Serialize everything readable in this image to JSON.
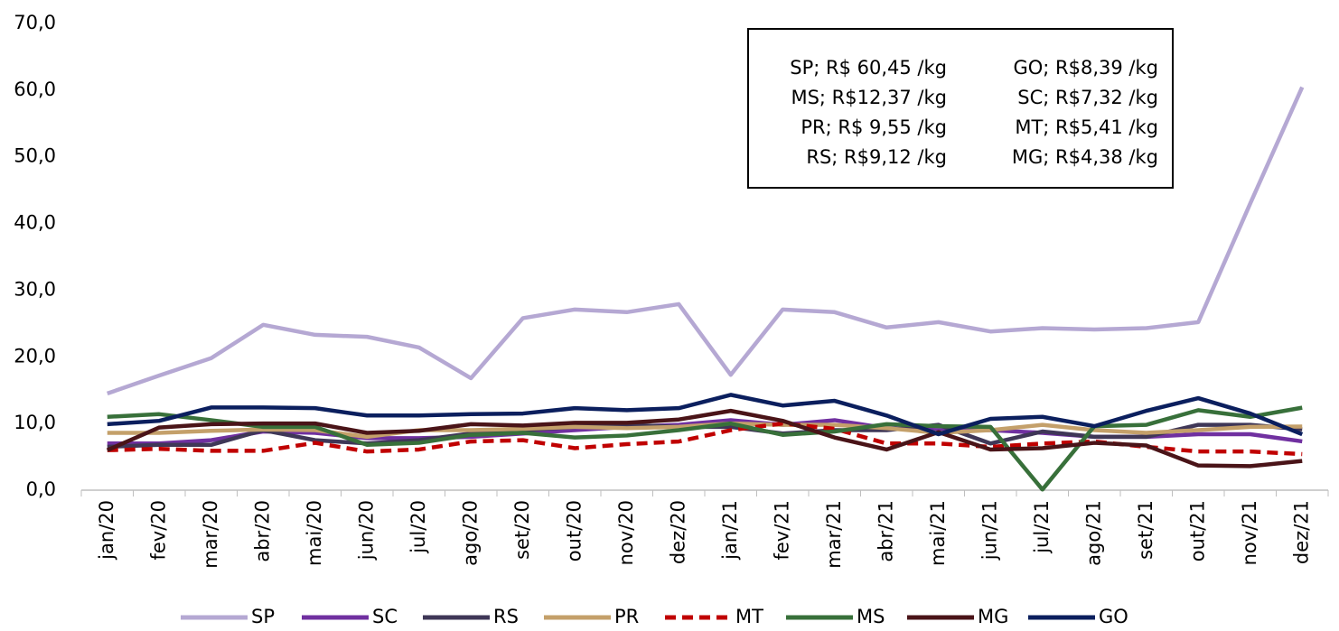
{
  "chart_data": {
    "type": "line",
    "categories": [
      "jan/20",
      "fev/20",
      "mar/20",
      "abr/20",
      "mai/20",
      "jun/20",
      "jul/20",
      "ago/20",
      "set/20",
      "out/20",
      "nov/20",
      "dez/20",
      "jan/21",
      "fev/21",
      "mar/21",
      "abr/21",
      "mai/21",
      "jun/21",
      "jul/21",
      "ago/21",
      "set/21",
      "out/21",
      "nov/21",
      "dez/21"
    ],
    "ylim": [
      0,
      70
    ],
    "yticks": [
      {
        "value": 0,
        "label": "0,0"
      },
      {
        "value": 10,
        "label": "10,0"
      },
      {
        "value": 20,
        "label": "20,0"
      },
      {
        "value": 30,
        "label": "30,0"
      },
      {
        "value": 40,
        "label": "40,0"
      },
      {
        "value": 50,
        "label": "50,0"
      },
      {
        "value": 60,
        "label": "60,0"
      },
      {
        "value": 70,
        "label": "70,0"
      }
    ],
    "grid": false,
    "legend": "bottom",
    "annotations": [
      "SP; R$ 60,45 /kg",
      "MS; R$12,37 /kg",
      "PR; R$ 9,55 /kg",
      "RS; R$9,12 /kg",
      "GO; R$8,39 /kg",
      "SC; R$7,32 /kg",
      "MT; R$5,41 /kg",
      "MG; R$4,38 /kg"
    ],
    "series": [
      {
        "name": "SP",
        "color": "#b5a8d3",
        "values": [
          14.5,
          17.2,
          19.8,
          24.8,
          23.3,
          23.0,
          21.4,
          16.8,
          25.8,
          27.1,
          26.7,
          27.9,
          17.3,
          27.1,
          26.7,
          24.4,
          25.2,
          23.8,
          24.3,
          24.1,
          24.3,
          25.2,
          43.0,
          60.45
        ]
      },
      {
        "name": "SC",
        "color": "#7030a0",
        "values": [
          7.0,
          7.0,
          7.5,
          8.8,
          8.6,
          7.8,
          7.8,
          8.0,
          8.5,
          9.0,
          9.5,
          9.8,
          10.5,
          9.8,
          10.5,
          9.3,
          9.0,
          9.0,
          8.6,
          8.0,
          8.0,
          8.4,
          8.4,
          7.32
        ]
      },
      {
        "name": "RS",
        "color": "#3f3757",
        "values": [
          6.5,
          6.8,
          6.8,
          9.0,
          7.5,
          7.0,
          7.5,
          8.5,
          9.0,
          9.5,
          9.8,
          9.5,
          9.5,
          8.5,
          9.0,
          9.0,
          9.8,
          7.0,
          8.8,
          8.0,
          8.0,
          9.8,
          9.8,
          9.12
        ]
      },
      {
        "name": "PR",
        "color": "#c4a06a",
        "values": [
          8.6,
          8.6,
          8.9,
          9.1,
          9.0,
          8.0,
          9.0,
          9.0,
          9.2,
          9.5,
          9.3,
          9.5,
          10.0,
          9.8,
          9.8,
          9.3,
          8.6,
          9.0,
          9.8,
          9.0,
          8.6,
          9.0,
          9.5,
          9.55
        ]
      },
      {
        "name": "MT",
        "color": "#c00000",
        "dashed": true,
        "values": [
          6.0,
          6.2,
          5.9,
          5.9,
          7.1,
          5.8,
          6.1,
          7.3,
          7.5,
          6.3,
          6.9,
          7.3,
          9.0,
          10.0,
          9.2,
          7.0,
          7.0,
          6.5,
          7.0,
          7.3,
          6.5,
          5.8,
          5.8,
          5.41
        ]
      },
      {
        "name": "MS",
        "color": "#38703a",
        "values": [
          11.0,
          11.4,
          10.5,
          9.5,
          9.5,
          6.8,
          7.1,
          8.3,
          8.6,
          7.9,
          8.2,
          9.0,
          10.0,
          8.3,
          8.8,
          9.9,
          9.6,
          9.5,
          0.1,
          9.6,
          9.8,
          12.0,
          11.0,
          12.37
        ]
      },
      {
        "name": "MG",
        "color": "#4a1418",
        "values": [
          6.0,
          9.4,
          9.9,
          10.0,
          10.0,
          8.6,
          8.9,
          9.9,
          9.7,
          10.1,
          10.1,
          10.6,
          11.9,
          10.4,
          7.9,
          6.1,
          8.7,
          6.1,
          6.3,
          7.1,
          6.7,
          3.7,
          3.6,
          4.38
        ]
      },
      {
        "name": "GO",
        "color": "#0b1f5e",
        "values": [
          9.9,
          10.4,
          12.4,
          12.4,
          12.3,
          11.2,
          11.2,
          11.4,
          11.5,
          12.3,
          12.0,
          12.3,
          14.3,
          12.7,
          13.4,
          11.2,
          8.4,
          10.7,
          11.0,
          9.6,
          11.9,
          13.8,
          11.5,
          8.39
        ]
      }
    ]
  }
}
